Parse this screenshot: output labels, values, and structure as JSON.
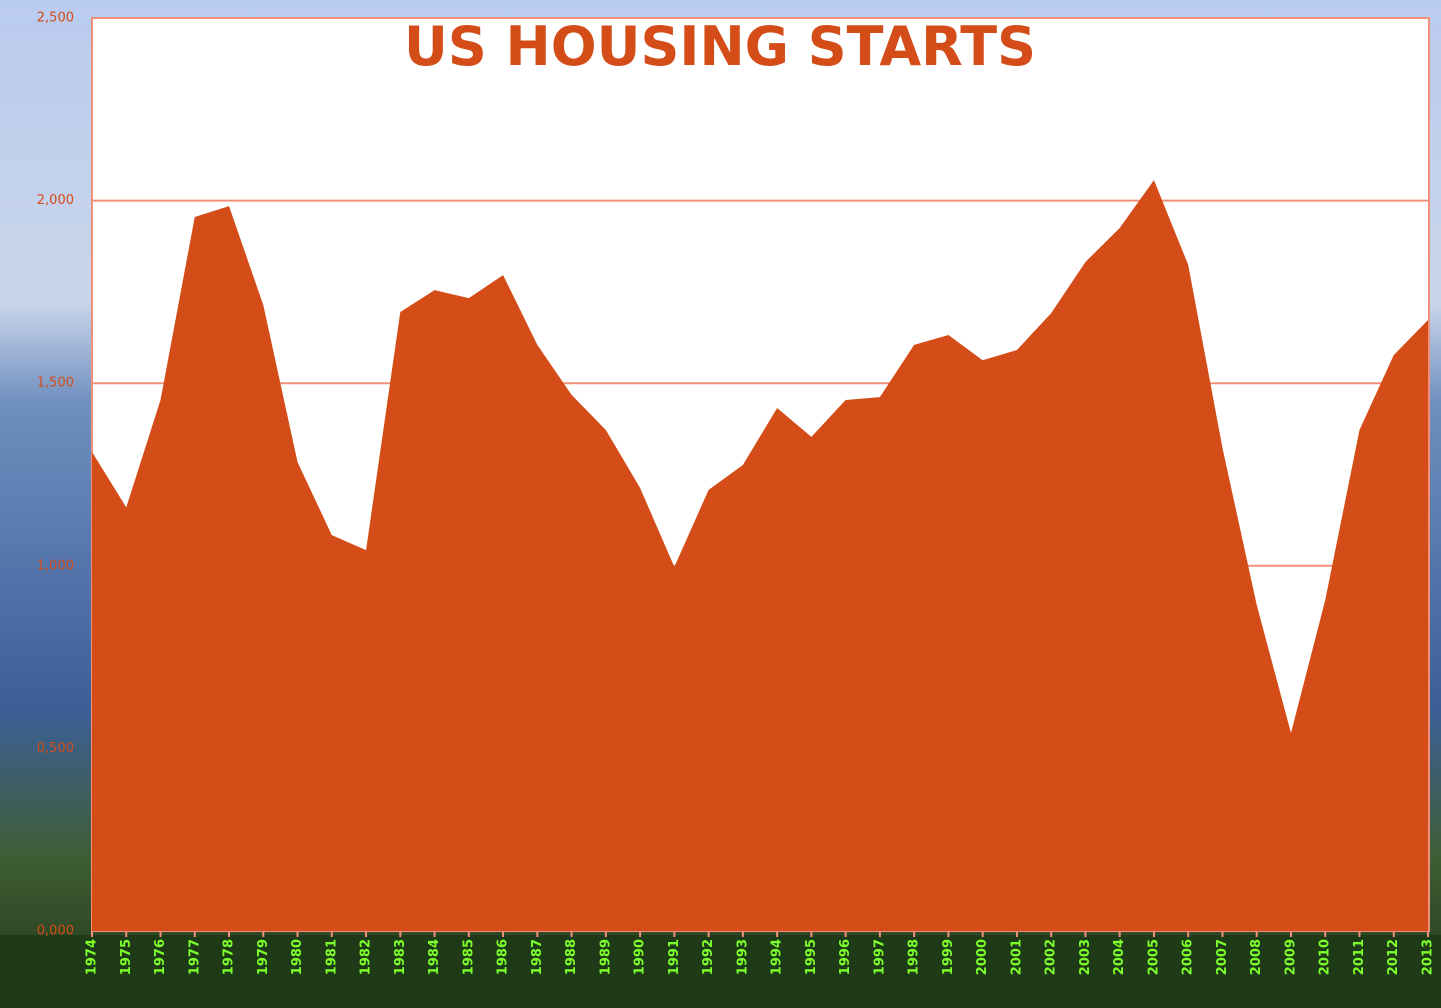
{
  "chart_data": {
    "type": "area",
    "title": "US HOUSING STARTS",
    "categories": [
      "1974",
      "1975",
      "1976",
      "1977",
      "1978",
      "1979",
      "1980",
      "1981",
      "1982",
      "1983",
      "1984",
      "1985",
      "1986",
      "1987",
      "1988",
      "1989",
      "1990",
      "1991",
      "1992",
      "1993",
      "1994",
      "1995",
      "1996",
      "1997",
      "1998",
      "1999",
      "2000",
      "2001",
      "2002",
      "2003",
      "2004",
      "2005",
      "2006",
      "2007",
      "2008",
      "2009",
      "2010",
      "2011",
      "2012",
      "2013"
    ],
    "values": [
      1312,
      1160,
      1454,
      1955,
      1985,
      1714,
      1284,
      1084,
      1043,
      1695,
      1755,
      1733,
      1796,
      1605,
      1468,
      1372,
      1213,
      997,
      1208,
      1276,
      1432,
      1353,
      1454,
      1462,
      1605,
      1632,
      1563,
      1591,
      1692,
      1832,
      1925,
      2056,
      1824,
      1323,
      893,
      542,
      906,
      1372,
      1577,
      1673
    ],
    "color": "#d44c17",
    "ylim": [
      0,
      2500
    ],
    "yticks": [
      {
        "value": 0,
        "label": "0,000"
      },
      {
        "value": 500,
        "label": "0,500"
      },
      {
        "value": 1000,
        "label": "1,000"
      },
      {
        "value": 1500,
        "label": "1,500"
      },
      {
        "value": 2000,
        "label": "2,000"
      },
      {
        "value": 2500,
        "label": "2,500"
      }
    ],
    "grid": true
  }
}
